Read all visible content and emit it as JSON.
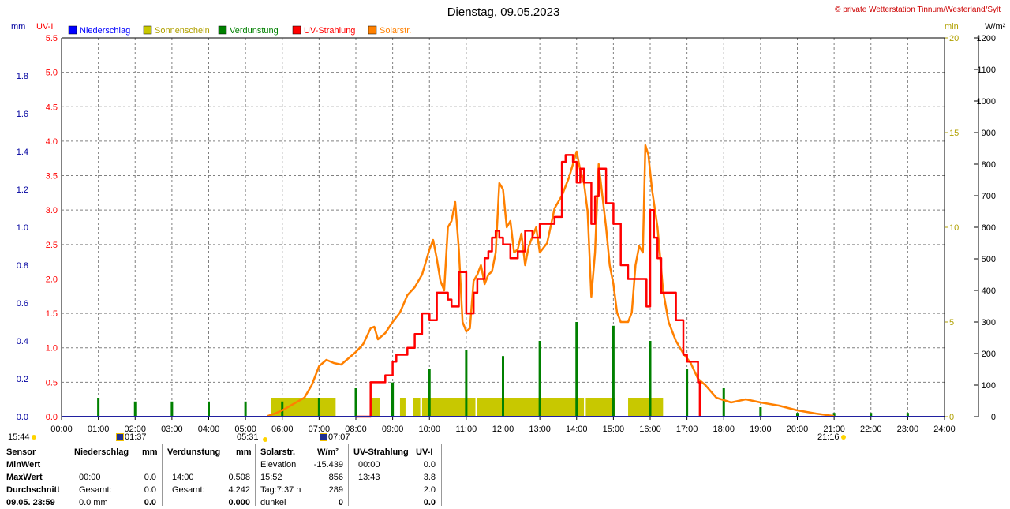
{
  "header": {
    "title": "Dienstag, 09.05.2023",
    "copyright": "© private Wetterstation Tinnum/Westerland/Sylt"
  },
  "axes": {
    "left_mm_label": "mm",
    "left_uv_label": "UV-I",
    "right_min_label": "min",
    "right_wm2_label": "W/m²",
    "mm_ticks": [
      "0.0",
      "0.2",
      "0.4",
      "0.6",
      "0.8",
      "1.0",
      "1.2",
      "1.4",
      "1.6",
      "1.8"
    ],
    "uv_ticks": [
      "0.0",
      "0.5",
      "1.0",
      "1.5",
      "2.0",
      "2.5",
      "3.0",
      "3.5",
      "4.0",
      "4.5",
      "5.0",
      "5.5"
    ],
    "min_ticks": [
      "0",
      "5",
      "10",
      "15",
      "20"
    ],
    "wm2_ticks": [
      "0",
      "100",
      "200",
      "300",
      "400",
      "500",
      "600",
      "700",
      "800",
      "900",
      "1000",
      "1100",
      "1200"
    ],
    "x_ticks": [
      "00:00",
      "01:00",
      "02:00",
      "03:00",
      "04:00",
      "05:00",
      "06:00",
      "07:00",
      "08:00",
      "09:00",
      "10:00",
      "11:00",
      "12:00",
      "13:00",
      "14:00",
      "15:00",
      "16:00",
      "17:00",
      "18:00",
      "19:00",
      "20:00",
      "21:00",
      "22:00",
      "23:00",
      "24:00"
    ]
  },
  "legend": [
    {
      "name": "Niederschlag",
      "color": "#0000ff"
    },
    {
      "name": "Sonnenschein",
      "color": "#c8c800"
    },
    {
      "name": "Verdunstung",
      "color": "#008000"
    },
    {
      "name": "UV-Strahlung",
      "color": "#ff0000"
    },
    {
      "name": "Solarstr.",
      "color": "#ff8000"
    }
  ],
  "colors": {
    "mm_axis": "#0000a0",
    "uv_axis": "#ff0000",
    "min_axis": "#b0a000",
    "wm2_axis": "#000000",
    "grid": "#808080",
    "uv_line": "#ff0000",
    "solar_line": "#ff8000",
    "sunshine_fill": "#c8c800",
    "evap_bar": "#008000"
  },
  "sun_moon": {
    "moonset": "15:44",
    "moonrise": "01:37",
    "sunrise": "05:31",
    "solar_noon_marker": "07:07",
    "sunset": "21:16"
  },
  "chart_data": {
    "type": "line",
    "title": "Dienstag, 09.05.2023",
    "x_unit": "hours",
    "xlim": [
      0,
      24
    ],
    "axes_ranges": {
      "precipitation_mm": [
        0,
        2.0
      ],
      "uv_index": [
        0,
        5.5
      ],
      "sunshine_min": [
        0,
        20
      ],
      "solar_wm2": [
        0,
        1200
      ]
    },
    "grid": true,
    "legend_placement": "top",
    "series": [
      {
        "name": "Solarstr.",
        "axis": "W/m²",
        "x": [
          5.6,
          5.8,
          6.0,
          6.3,
          6.6,
          6.8,
          7.0,
          7.2,
          7.4,
          7.6,
          7.8,
          8.0,
          8.2,
          8.4,
          8.5,
          8.6,
          8.8,
          9.0,
          9.2,
          9.4,
          9.6,
          9.8,
          10.0,
          10.1,
          10.2,
          10.3,
          10.4,
          10.5,
          10.6,
          10.7,
          10.8,
          10.9,
          11.0,
          11.1,
          11.2,
          11.3,
          11.4,
          11.5,
          11.6,
          11.7,
          11.8,
          11.9,
          12.0,
          12.1,
          12.2,
          12.3,
          12.4,
          12.5,
          12.6,
          12.7,
          12.8,
          12.9,
          13.0,
          13.2,
          13.4,
          13.6,
          13.8,
          13.9,
          14.0,
          14.1,
          14.2,
          14.3,
          14.4,
          14.5,
          14.6,
          14.7,
          14.8,
          14.9,
          15.0,
          15.1,
          15.2,
          15.3,
          15.4,
          15.5,
          15.6,
          15.7,
          15.8,
          15.87,
          15.95,
          16.05,
          16.2,
          16.35,
          16.5,
          16.7,
          16.9,
          17.1,
          17.3,
          17.5,
          17.8,
          18.2,
          18.6,
          19.0,
          19.5,
          20.0,
          20.5,
          21.0
        ],
        "values": [
          2,
          10,
          20,
          40,
          60,
          100,
          160,
          180,
          170,
          165,
          185,
          205,
          230,
          280,
          285,
          245,
          265,
          300,
          330,
          385,
          410,
          450,
          530,
          560,
          500,
          430,
          400,
          600,
          620,
          680,
          530,
          300,
          270,
          280,
          430,
          450,
          480,
          420,
          450,
          460,
          520,
          740,
          720,
          600,
          620,
          520,
          530,
          580,
          480,
          540,
          570,
          600,
          520,
          550,
          660,
          700,
          760,
          800,
          840,
          780,
          740,
          650,
          380,
          520,
          800,
          700,
          600,
          480,
          420,
          330,
          300,
          300,
          300,
          330,
          480,
          540,
          520,
          860,
          830,
          720,
          600,
          400,
          300,
          240,
          200,
          170,
          120,
          100,
          60,
          45,
          55,
          45,
          35,
          20,
          10,
          2
        ]
      },
      {
        "name": "UV-Strahlung",
        "axis": "UV-I",
        "x": [
          8.0,
          8.4,
          8.5,
          8.8,
          9.0,
          9.1,
          9.4,
          9.6,
          9.8,
          10.0,
          10.2,
          10.5,
          10.6,
          10.8,
          11.0,
          11.1,
          11.2,
          11.3,
          11.5,
          11.6,
          11.7,
          11.8,
          11.9,
          12.0,
          12.2,
          12.4,
          12.6,
          12.8,
          13.0,
          13.2,
          13.4,
          13.6,
          13.7,
          13.9,
          14.0,
          14.1,
          14.2,
          14.4,
          14.5,
          14.6,
          14.8,
          15.0,
          15.2,
          15.4,
          15.6,
          15.8,
          15.9,
          16.0,
          16.1,
          16.2,
          16.3,
          16.5,
          16.7,
          16.9,
          17.0,
          17.1,
          17.2,
          17.3,
          17.35
        ],
        "values": [
          0.0,
          0.5,
          0.5,
          0.6,
          0.8,
          0.9,
          1.0,
          1.2,
          1.5,
          1.4,
          1.8,
          1.7,
          1.6,
          2.1,
          1.5,
          1.5,
          1.8,
          2.0,
          2.3,
          2.4,
          2.6,
          2.7,
          2.6,
          2.5,
          2.3,
          2.4,
          2.7,
          2.6,
          2.8,
          2.8,
          2.9,
          3.7,
          3.8,
          3.7,
          3.4,
          3.6,
          3.4,
          2.8,
          3.2,
          3.6,
          3.1,
          2.8,
          2.2,
          2.0,
          2.0,
          2.0,
          1.6,
          3.0,
          2.6,
          2.3,
          1.8,
          1.8,
          1.4,
          0.9,
          0.8,
          0.8,
          0.8,
          0.5,
          0.0
        ]
      },
      {
        "name": "Verdunstung",
        "axis": "mm",
        "type": "bar",
        "x": [
          1.0,
          2.0,
          3.0,
          4.0,
          5.0,
          6.0,
          7.0,
          8.0,
          8.98,
          9.0,
          10.0,
          11.0,
          12.0,
          13.0,
          14.0,
          15.0,
          16.0,
          17.0,
          18.0,
          19.0,
          20.0,
          21.0,
          22.0,
          23.0
        ],
        "values": [
          0.1,
          0.08,
          0.08,
          0.08,
          0.08,
          0.08,
          0.1,
          0.15,
          0.18,
          0.18,
          0.25,
          0.35,
          0.32,
          0.4,
          0.5,
          0.48,
          0.4,
          0.25,
          0.15,
          0.05,
          0.02,
          0.02,
          0.02,
          0.02
        ]
      },
      {
        "name": "Sonnenschein",
        "axis": "min",
        "type": "area",
        "x": [
          5.7,
          7.45,
          8.4,
          8.65,
          9.2,
          9.35,
          9.55,
          9.75,
          11.3,
          14.2,
          14.25,
          15.05,
          15.4,
          16.35
        ],
        "values": [
          1,
          1,
          1,
          1,
          1,
          1,
          1,
          1,
          1,
          1,
          1,
          1,
          1,
          1
        ],
        "segments": [
          [
            5.7,
            7.45
          ],
          [
            8.4,
            8.65
          ],
          [
            9.2,
            9.35
          ],
          [
            9.55,
            9.75
          ],
          [
            9.8,
            11.25
          ],
          [
            11.3,
            14.2
          ],
          [
            14.25,
            15.05
          ],
          [
            15.4,
            16.35
          ]
        ]
      },
      {
        "name": "Niederschlag",
        "axis": "mm",
        "type": "bar",
        "x": [],
        "values": []
      }
    ]
  },
  "stats": {
    "headers": {
      "sensor": "Sensor",
      "niederschlag": "Niederschlag",
      "niederschlag_unit": "mm",
      "verdunstung": "Verdunstung",
      "verdunstung_unit": "mm",
      "solar": "Solarstr.",
      "solar_unit": "W/m²",
      "uv": "UV-Strahlung",
      "uv_unit": "UV-I"
    },
    "rows": [
      {
        "label": "MinWert",
        "n_time": "",
        "n_val": "",
        "v_time": "",
        "v_val": "",
        "s_time": "Elevation",
        "s_val": "-15.439",
        "u_time": "00:00",
        "u_val": "0.0"
      },
      {
        "label": "MaxWert",
        "n_time": "00:00",
        "n_val": "0.0",
        "v_time": "14:00",
        "v_val": "0.508",
        "s_time": "15:52",
        "s_val": "856",
        "u_time": "13:43",
        "u_val": "3.8"
      },
      {
        "label": "Durchschnitt",
        "n_time": "Gesamt:",
        "n_val": "0.0",
        "v_time": "Gesamt:",
        "v_val": "4.242",
        "s_time": "Tag:7:37 h",
        "s_val": "289",
        "u_time": "",
        "u_val": "2.0"
      },
      {
        "label": "09.05. 23:59",
        "n_time": "0.0 mm",
        "n_val": "0.0",
        "v_time": "",
        "v_val": "0.000",
        "s_time": "dunkel",
        "s_val": "0",
        "u_time": "",
        "u_val": "0.0"
      }
    ]
  }
}
